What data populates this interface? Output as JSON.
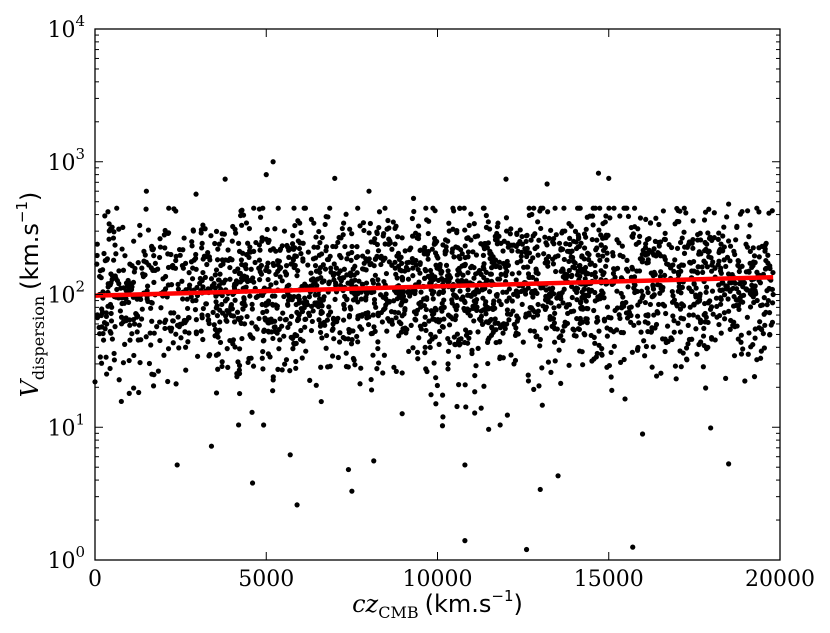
{
  "chart_data": {
    "type": "scatter",
    "title": "",
    "xlabel": {
      "var": "cz",
      "sub": "CMB",
      "unit": "(km.s",
      "unit_exp": "−1",
      "unit_close": ")"
    },
    "ylabel": {
      "var": "V",
      "sub": "dispersion",
      "unit": "(km.s",
      "unit_exp": "−1",
      "unit_close": ")"
    },
    "xlim": [
      0,
      20000
    ],
    "ylim": [
      1,
      10000
    ],
    "yscale": "log",
    "grid": false,
    "x_ticks": [
      "0",
      "5000",
      "10000",
      "15000",
      "20000"
    ],
    "y_ticks": [
      {
        "base": "10",
        "exp": "0"
      },
      {
        "base": "10",
        "exp": "1"
      },
      {
        "base": "10",
        "exp": "2"
      },
      {
        "base": "10",
        "exp": "3"
      },
      {
        "base": "10",
        "exp": "4"
      }
    ],
    "points_color": "#000000",
    "fit_line": {
      "color": "#ff0000",
      "x": [
        0,
        19800
      ],
      "y": [
        98,
        135
      ]
    },
    "points_generated": {
      "count": 2600,
      "x_range": [
        0,
        20000
      ],
      "log_center_start": 2.0,
      "log_center_end": 2.13,
      "log_spread": 0.28,
      "seed": 7
    },
    "points": [
      {
        "x": 300,
        "y": 180
      },
      {
        "x": 1500,
        "y": 600
      },
      {
        "x": 2950,
        "y": 570
      },
      {
        "x": 3800,
        "y": 740
      },
      {
        "x": 4800,
        "y": 440
      },
      {
        "x": 5000,
        "y": 800
      },
      {
        "x": 5200,
        "y": 1000
      },
      {
        "x": 7000,
        "y": 750
      },
      {
        "x": 8000,
        "y": 600
      },
      {
        "x": 9300,
        "y": 530
      },
      {
        "x": 12000,
        "y": 740
      },
      {
        "x": 13200,
        "y": 680
      },
      {
        "x": 14700,
        "y": 820
      },
      {
        "x": 15000,
        "y": 750
      },
      {
        "x": 18500,
        "y": 480
      },
      {
        "x": 18200,
        "y": 260
      },
      {
        "x": 0,
        "y": 22
      },
      {
        "x": 1000,
        "y": 18
      },
      {
        "x": 2400,
        "y": 5.2
      },
      {
        "x": 3400,
        "y": 7.2
      },
      {
        "x": 4600,
        "y": 3.8
      },
      {
        "x": 5700,
        "y": 6.2
      },
      {
        "x": 5900,
        "y": 2.6
      },
      {
        "x": 7400,
        "y": 4.8
      },
      {
        "x": 7500,
        "y": 3.3
      },
      {
        "x": 10800,
        "y": 5.2
      },
      {
        "x": 10800,
        "y": 1.4
      },
      {
        "x": 12600,
        "y": 1.2
      },
      {
        "x": 13000,
        "y": 3.4
      },
      {
        "x": 15700,
        "y": 1.25
      },
      {
        "x": 18500,
        "y": 5.3
      },
      {
        "x": 19700,
        "y": 50
      },
      {
        "x": 19800,
        "y": 100
      }
    ]
  }
}
